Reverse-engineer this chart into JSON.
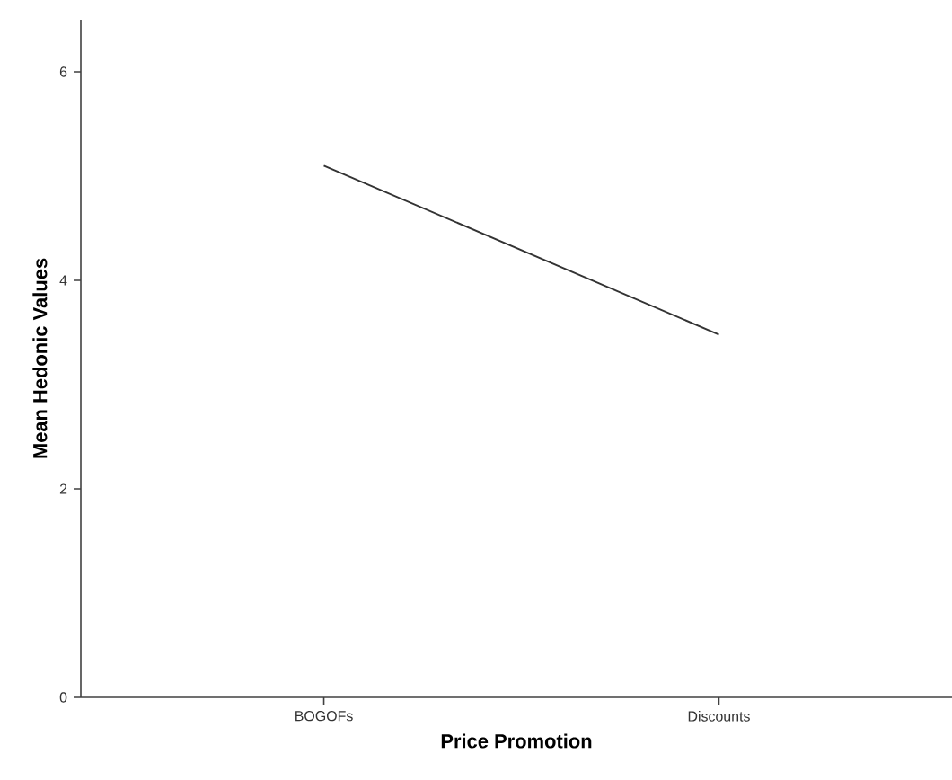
{
  "chart_data": {
    "type": "line",
    "xlabel": "Price Promotion",
    "ylabel": "Mean Hedonic Values",
    "categories": [
      "BOGOFs",
      "Discounts"
    ],
    "series": [
      {
        "color": "#333333",
        "values": [
          5.1,
          3.48
        ]
      }
    ],
    "ylim": [
      0,
      6.5
    ],
    "yticks": [
      0,
      2,
      4,
      6
    ],
    "grid": false,
    "legend": false,
    "marker": "none",
    "line_style": "solid"
  }
}
